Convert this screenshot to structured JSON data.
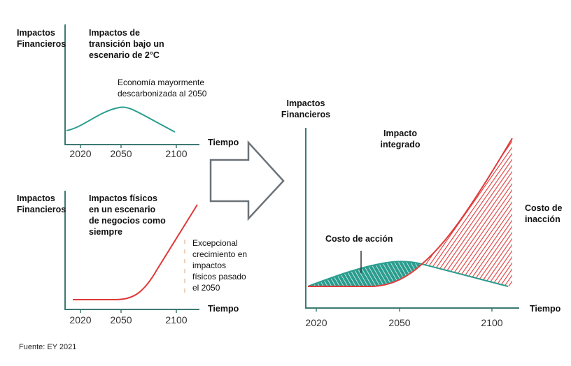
{
  "top_chart": {
    "y_label": [
      "Impactos",
      "Financieros"
    ],
    "title": [
      "Impactos de",
      "transición bajo un",
      "escenario de 2°C"
    ],
    "annotation": [
      "Economía mayormente",
      "descarbonizada al 2050"
    ],
    "x_label": "Tiempo",
    "ticks": [
      "2020",
      "2050",
      "2100"
    ]
  },
  "bottom_chart": {
    "y_label": [
      "Impactos",
      "Financieros"
    ],
    "title": [
      "Impactos físicos",
      "en un escenario",
      "de negocios como",
      "siempre"
    ],
    "annotation": [
      "Excepcional",
      "crecimiento en",
      "impactos",
      "físicos pasado",
      "el 2050"
    ],
    "x_label": "Tiempo",
    "ticks": [
      "2020",
      "2050",
      "2100"
    ]
  },
  "right_chart": {
    "y_label": [
      "Impactos",
      "Financieros"
    ],
    "title": [
      "Impacto",
      "integrado"
    ],
    "action_label": "Costo de acción",
    "inaction_label": [
      "Costo de",
      "inacción"
    ],
    "x_label": "Tiempo",
    "ticks": [
      "2020",
      "2050",
      "2100"
    ]
  },
  "source": "Fuente: EY 2021",
  "colors": {
    "transition": "#2a9d8f",
    "physical": "#e03a3a",
    "axis": "#3d7a72",
    "arrow": "#6b7278"
  }
}
